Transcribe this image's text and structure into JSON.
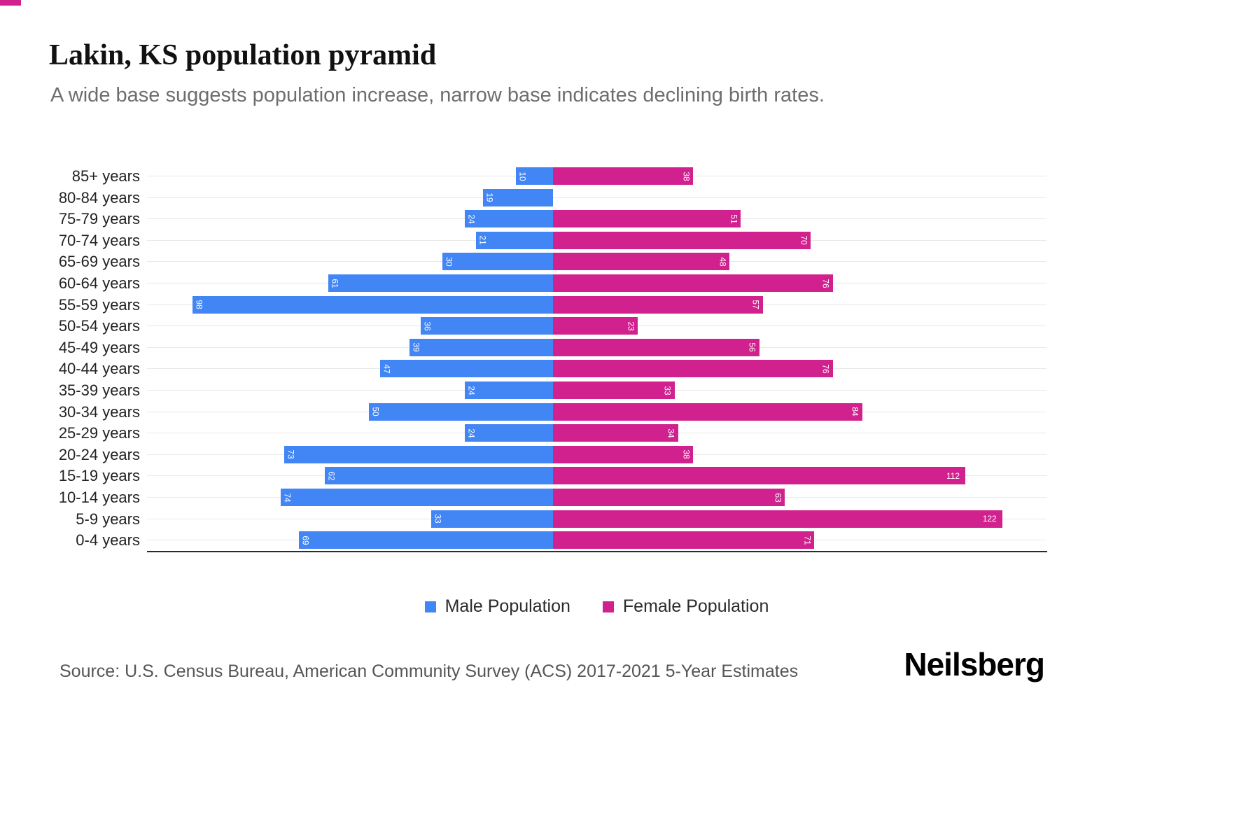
{
  "accent": {
    "top_bar_color": "#D0218E"
  },
  "header": {
    "title": "Lakin, KS population pyramid",
    "subtitle": "A wide base suggests population increase, narrow base indicates declining birth rates."
  },
  "chart_data": {
    "type": "bar",
    "variant": "population-pyramid",
    "orientation": "horizontal",
    "title": "Lakin, KS population pyramid",
    "categories": [
      "85+ years",
      "80-84 years",
      "75-79 years",
      "70-74 years",
      "65-69 years",
      "60-64 years",
      "55-59 years",
      "50-54 years",
      "45-49 years",
      "40-44 years",
      "35-39 years",
      "30-34 years",
      "25-29 years",
      "20-24 years",
      "15-19 years",
      "10-14 years",
      "5-9 years",
      "0-4 years"
    ],
    "series": [
      {
        "name": "Male Population",
        "side": "left",
        "color": "#4285F4",
        "values": [
          10,
          19,
          24,
          21,
          30,
          61,
          98,
          36,
          39,
          47,
          24,
          50,
          24,
          73,
          62,
          74,
          33,
          69
        ]
      },
      {
        "name": "Female Population",
        "side": "right",
        "color": "#D0218E",
        "values": [
          38,
          0,
          51,
          70,
          48,
          76,
          57,
          23,
          56,
          76,
          33,
          84,
          34,
          38,
          112,
          63,
          122,
          71
        ]
      }
    ],
    "value_labels": "inside outer end, white; rotated 90 deg for 1-2 digit values, horizontal for 3-digit values; zero values have no bar and no label",
    "grid": "light horizontal gridline per category row",
    "legend_position": "bottom-center",
    "axis": {
      "left_max": 110,
      "right_max": 134,
      "baseline": "solid dark bottom axis line"
    }
  },
  "footer": {
    "source": "Source: U.S. Census Bureau, American Community Survey (ACS) 2017-2021 5-Year Estimates",
    "brand": "Neilsberg"
  }
}
